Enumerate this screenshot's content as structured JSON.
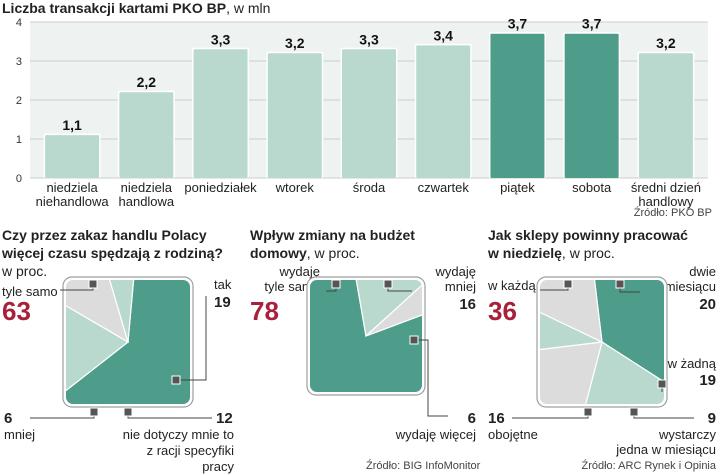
{
  "bar_chart": {
    "title": "Liczba  transakcji kartami PKO BP",
    "title_unit": ", w mln",
    "source": "Źródło: PKO BP",
    "colors": {
      "light": "#b9d9cf",
      "dark": "#4e9c8a",
      "bg": "#eef3f2",
      "grid": "#c9cfcd"
    }
  },
  "chart_data": [
    {
      "type": "bar",
      "title": "Liczba  transakcji kartami PKO BP, w mln",
      "categories": [
        "niedziela niehandlowa",
        "niedziela handlowa",
        "poniedziałek",
        "wtorek",
        "środa",
        "czwartek",
        "piątek",
        "sobota",
        "średni dzień handlowy"
      ],
      "category_lines": [
        [
          "niedziela",
          "niehandlowa"
        ],
        [
          "niedziela",
          "handlowa"
        ],
        [
          "poniedziałek"
        ],
        [
          "wtorek"
        ],
        [
          "środa"
        ],
        [
          "czwartek"
        ],
        [
          "piątek"
        ],
        [
          "sobota"
        ],
        [
          "średni dzień",
          "handlowy"
        ]
      ],
      "values": [
        1.1,
        2.2,
        3.3,
        3.2,
        3.3,
        3.4,
        3.7,
        3.7,
        3.2
      ],
      "value_labels": [
        "1,1",
        "2,2",
        "3,3",
        "3,2",
        "3,3",
        "3,4",
        "3,7",
        "3,7",
        "3,2"
      ],
      "highlight": [
        false,
        false,
        false,
        false,
        false,
        false,
        true,
        true,
        false
      ],
      "ylim": [
        0,
        4
      ],
      "yticks": [
        "0",
        "1",
        "2",
        "3",
        "4"
      ],
      "grid": true
    },
    {
      "type": "pie",
      "title": "Czy przez zakaz handlu Polacy więcej czasu spędzają z rodziną?",
      "unit": "w proc.",
      "slices": [
        {
          "label": "tyle samo",
          "value": 63
        },
        {
          "label": "tak",
          "value": 19
        },
        {
          "label": "nie dotyczy mnie to z racji specyfiki pracy",
          "value": 12
        },
        {
          "label": "mniej",
          "value": 6
        }
      ]
    },
    {
      "type": "pie",
      "title": "Wpływ zmiany na budżet domowy",
      "unit": ", w proc.",
      "slices": [
        {
          "label": "wydaję tyle samo",
          "value": 78
        },
        {
          "label": "wydaję mniej",
          "value": 16
        },
        {
          "label": "wydaję więcej",
          "value": 6
        }
      ]
    },
    {
      "type": "pie",
      "title": "Jak sklepy powinny pracować w niedzielę",
      "unit": ", w proc.",
      "slices": [
        {
          "label": "w każdą",
          "value": 36
        },
        {
          "label": "dwie w miesiącu",
          "value": 20
        },
        {
          "label": "w żadną",
          "value": 19
        },
        {
          "label": "wystarczy jedna w miesiącu",
          "value": 9
        },
        {
          "label": "obojętne",
          "value": 16
        }
      ]
    }
  ],
  "panel1": {
    "title_l1": "Czy przez zakaz handlu Polacy",
    "title_l2": "więcej czasu spędzają z rodziną?",
    "unit": "w proc.",
    "tyle_label": "tyle samo",
    "tyle_value": "63",
    "tak_label": "tak",
    "tak_value": "19",
    "mniej_value": "6",
    "mniej_label": "mniej",
    "nie_value": "12",
    "nie_l1": "nie dotyczy mnie to",
    "nie_l2": "z racji specyfiki pracy"
  },
  "panel2": {
    "title_l1": "Wpływ zmiany na budżet",
    "title_l2": "domowy",
    "unit": ", w proc.",
    "samo_l1": "wydaję",
    "samo_l2": "tyle samo",
    "samo_value": "78",
    "mniej_l1": "wydaję",
    "mniej_l2": "mniej",
    "mniej_value": "16",
    "wiecej_value": "6",
    "wiecej_label": "wydaję więcej"
  },
  "panel3": {
    "title_l1": "Jak sklepy powinny pracować",
    "title_l2": "w niedzielę",
    "unit": ", w proc.",
    "kazda_label": "w każdą",
    "kazda_value": "36",
    "dwie_l1": "dwie",
    "dwie_l2": "w miesiącu",
    "dwie_value": "20",
    "zadna_label": "w żadną",
    "zadna_value": "19",
    "jedna_value": "9",
    "jedna_l1": "wystarczy",
    "jedna_l2": "jedna w miesiącu",
    "oboj_value": "16",
    "oboj_label": "obojętne"
  },
  "sources": {
    "left": "Źródło: BIG InfoMonitor",
    "right": "Źródło: ARC Rynek i Opinia"
  },
  "colors": {
    "dark": "#4e9c8a",
    "light": "#b9d9cf",
    "gray": "#dcdcdc",
    "red": "#a8213a",
    "frame": "#9aa09e"
  }
}
